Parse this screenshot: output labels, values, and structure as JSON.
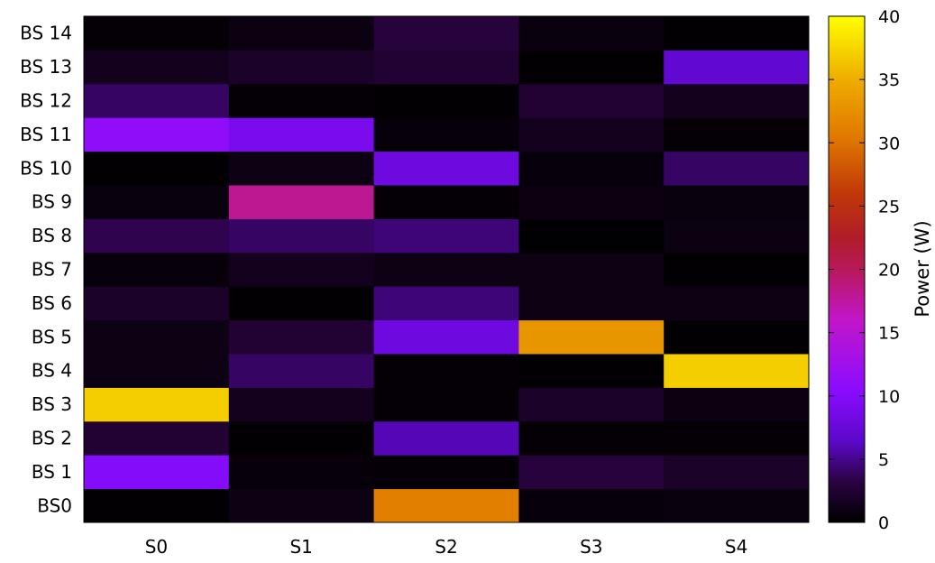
{
  "chart_data": {
    "type": "heatmap",
    "title": "",
    "xlabel": "",
    "ylabel": "",
    "x_categories": [
      "S0",
      "S1",
      "S2",
      "S3",
      "S4"
    ],
    "y_categories": [
      "BS0",
      "BS 1",
      "BS 2",
      "BS 3",
      "BS 4",
      "BS 5",
      "BS 6",
      "BS 7",
      "BS 8",
      "BS 9",
      "BS 10",
      "BS 11",
      "BS 12",
      "BS 13",
      "BS 14"
    ],
    "values": [
      [
        0.2,
        1.0,
        31.0,
        0.5,
        0.7
      ],
      [
        10.0,
        0.5,
        0.4,
        3.0,
        2.0
      ],
      [
        2.5,
        0.2,
        6.0,
        0.3,
        0.3
      ],
      [
        37.0,
        1.5,
        0.3,
        2.0,
        0.8
      ],
      [
        1.0,
        4.0,
        0.3,
        0.2,
        37.0
      ],
      [
        1.0,
        2.5,
        8.0,
        33.0,
        0.2
      ],
      [
        2.0,
        0.2,
        4.5,
        1.0,
        1.0
      ],
      [
        0.5,
        1.5,
        1.0,
        1.0,
        0.2
      ],
      [
        3.5,
        4.0,
        4.5,
        0.1,
        0.8
      ],
      [
        0.7,
        18.0,
        0.3,
        0.8,
        0.7
      ],
      [
        0.2,
        1.0,
        8.0,
        0.5,
        4.0
      ],
      [
        11.0,
        9.0,
        0.5,
        1.5,
        0.3
      ],
      [
        4.0,
        0.3,
        0.2,
        2.5,
        1.5
      ],
      [
        1.5,
        2.0,
        2.5,
        0.2,
        7.0
      ],
      [
        0.3,
        0.8,
        3.0,
        0.7,
        0.2
      ]
    ],
    "colorbar": {
      "label": "Power (W)",
      "range": [
        0,
        40
      ],
      "ticks": [
        0,
        5,
        10,
        15,
        20,
        25,
        30,
        35,
        40
      ],
      "palette": "black-purple-red-orange-yellow"
    }
  }
}
